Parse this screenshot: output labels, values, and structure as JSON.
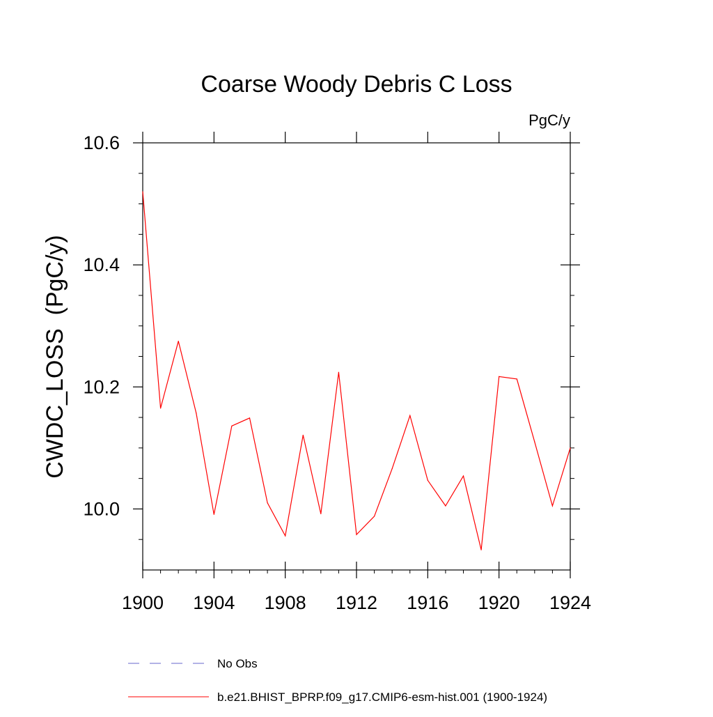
{
  "chart_data": {
    "type": "line",
    "title": "Coarse Woody Debris C Loss",
    "units_label": "PgC/y",
    "xlabel": "",
    "ylabel": "CWDC_LOSS  (PgC/y)",
    "xlim": [
      1900,
      1924
    ],
    "ylim": [
      9.9,
      10.62
    ],
    "x_ticks": [
      1900,
      1904,
      1908,
      1912,
      1916,
      1920,
      1924
    ],
    "x_tick_labels": [
      "1900",
      "1904",
      "1908",
      "1912",
      "1916",
      "1920",
      "1924"
    ],
    "y_ticks": [
      10.0,
      10.2,
      10.4,
      10.6
    ],
    "y_tick_labels": [
      "10.0",
      "10.2",
      "10.4",
      "10.6"
    ],
    "y_minor_step": 0.05,
    "x_minor_step": 1,
    "series": [
      {
        "name": "b.e21.BHIST_BPRP.f09_g17.CMIP6-esm-hist.001 (1900-1924)",
        "color": "#ff0000",
        "style": "solid",
        "x": [
          1900,
          1901,
          1902,
          1903,
          1904,
          1905,
          1906,
          1907,
          1908,
          1909,
          1910,
          1911,
          1912,
          1913,
          1914,
          1915,
          1916,
          1917,
          1918,
          1919,
          1920,
          1921,
          1922,
          1923,
          1924
        ],
        "values": [
          10.52,
          10.165,
          10.275,
          10.157,
          9.991,
          10.136,
          10.149,
          10.01,
          9.956,
          10.121,
          9.992,
          10.224,
          9.958,
          9.988,
          10.066,
          10.153,
          10.047,
          10.005,
          10.054,
          9.933,
          10.217,
          10.213,
          10.11,
          10.005,
          10.1
        ]
      }
    ],
    "legend": [
      {
        "label": "No Obs",
        "color": "#6666cc",
        "style": "dashed"
      },
      {
        "label": "b.e21.BHIST_BPRP.f09_g17.CMIP6-esm-hist.001 (1900-1924)",
        "color": "#ff0000",
        "style": "solid"
      }
    ],
    "legend_position": "bottom"
  }
}
